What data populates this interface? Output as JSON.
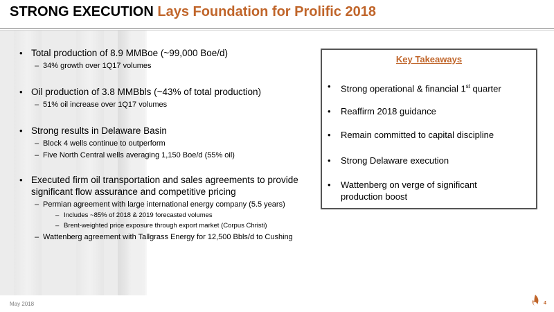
{
  "title": {
    "bold": "STRONG EXECUTION",
    "accent": "Lays Foundation for Prolific 2018"
  },
  "bullets": [
    {
      "text": "Total production of 8.9 MMBoe (~99,000 Boe/d)",
      "subs": [
        {
          "text": "34% growth over 1Q17 volumes",
          "subs": []
        }
      ]
    },
    {
      "text": "Oil production of 3.8 MMBbls (~43% of total production)",
      "subs": [
        {
          "text": "51% oil increase over 1Q17 volumes",
          "subs": []
        }
      ]
    },
    {
      "text": "Strong results in Delaware Basin",
      "subs": [
        {
          "text": "Block 4 wells continue to outperform",
          "subs": []
        },
        {
          "text": "Five North Central wells averaging 1,150 Boe/d (55% oil)",
          "subs": []
        }
      ]
    },
    {
      "text_line1": "Executed firm oil transportation and sales agreements to provide",
      "text_line2": "significant flow assurance and competitive pricing",
      "subs": [
        {
          "text": "Permian agreement with large international energy company (5.5 years)",
          "subs": [
            "Includes ~85% of 2018 & 2019 forecasted volumes",
            "Brent-weighted price exposure through export market (Corpus Christi)"
          ]
        },
        {
          "text": "Wattenberg agreement with Tallgrass Energy for 12,500 Bbls/d to Cushing",
          "subs": []
        }
      ]
    }
  ],
  "bullet_char": "•",
  "dash_char": "–",
  "takeaways": {
    "title": "Key Takeaways",
    "items": [
      {
        "pre": "Strong operational & financial 1",
        "sup": "st",
        "post": " quarter"
      },
      {
        "text": "Reaffirm 2018 guidance"
      },
      {
        "text": "Remain committed to capital discipline"
      },
      {
        "text": "Strong Delaware execution"
      },
      {
        "line1": "Wattenberg on verge of significant",
        "line2": "production boost"
      }
    ]
  },
  "footer": {
    "date": "May 2018",
    "page": "4"
  },
  "colors": {
    "accent": "#c0652a",
    "panel": "#ececec",
    "box_border": "#555555"
  }
}
